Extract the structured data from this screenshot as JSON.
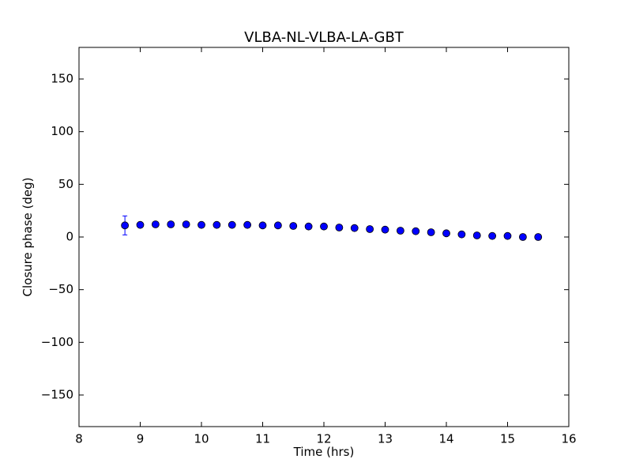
{
  "chart_data": {
    "type": "scatter",
    "title": "VLBA-NL-VLBA-LA-GBT",
    "xlabel": "Time (hrs)",
    "ylabel": "Closure phase (deg)",
    "xlim": [
      8,
      16
    ],
    "ylim": [
      -180,
      180
    ],
    "xticks": [
      8,
      9,
      10,
      11,
      12,
      13,
      14,
      15,
      16
    ],
    "yticks": [
      -150,
      -100,
      -50,
      0,
      50,
      100,
      150
    ],
    "xtick_labels": [
      "8",
      "9",
      "10",
      "11",
      "12",
      "13",
      "14",
      "15",
      "16"
    ],
    "ytick_labels": [
      "−150",
      "−100",
      "−50",
      "0",
      "50",
      "100",
      "150"
    ],
    "grid": false,
    "marker_color": "#0000ff",
    "series": [
      {
        "x": [
          8.75,
          9.0,
          9.25,
          9.5,
          9.75,
          10.0,
          10.25,
          10.5,
          10.75,
          11.0,
          11.25,
          11.5,
          11.75,
          12.0,
          12.25,
          12.5,
          12.75,
          13.0,
          13.25,
          13.5,
          13.75,
          14.0,
          14.25,
          14.5,
          14.75,
          15.0,
          15.25,
          15.5
        ],
        "y": [
          11,
          11.5,
          12,
          12,
          12,
          11.5,
          11.5,
          11.5,
          11.5,
          11,
          11,
          10.5,
          10,
          10,
          9,
          8.5,
          7.5,
          7,
          6,
          5.5,
          4.5,
          3.5,
          2.5,
          1.5,
          1,
          1,
          0,
          0
        ],
        "yerr": [
          9,
          1,
          1,
          1,
          1,
          1,
          1,
          1,
          1,
          1,
          1,
          1,
          1,
          1,
          1,
          1,
          1,
          1,
          1,
          1,
          1,
          1,
          1,
          1,
          1,
          1,
          1,
          1
        ]
      }
    ]
  }
}
